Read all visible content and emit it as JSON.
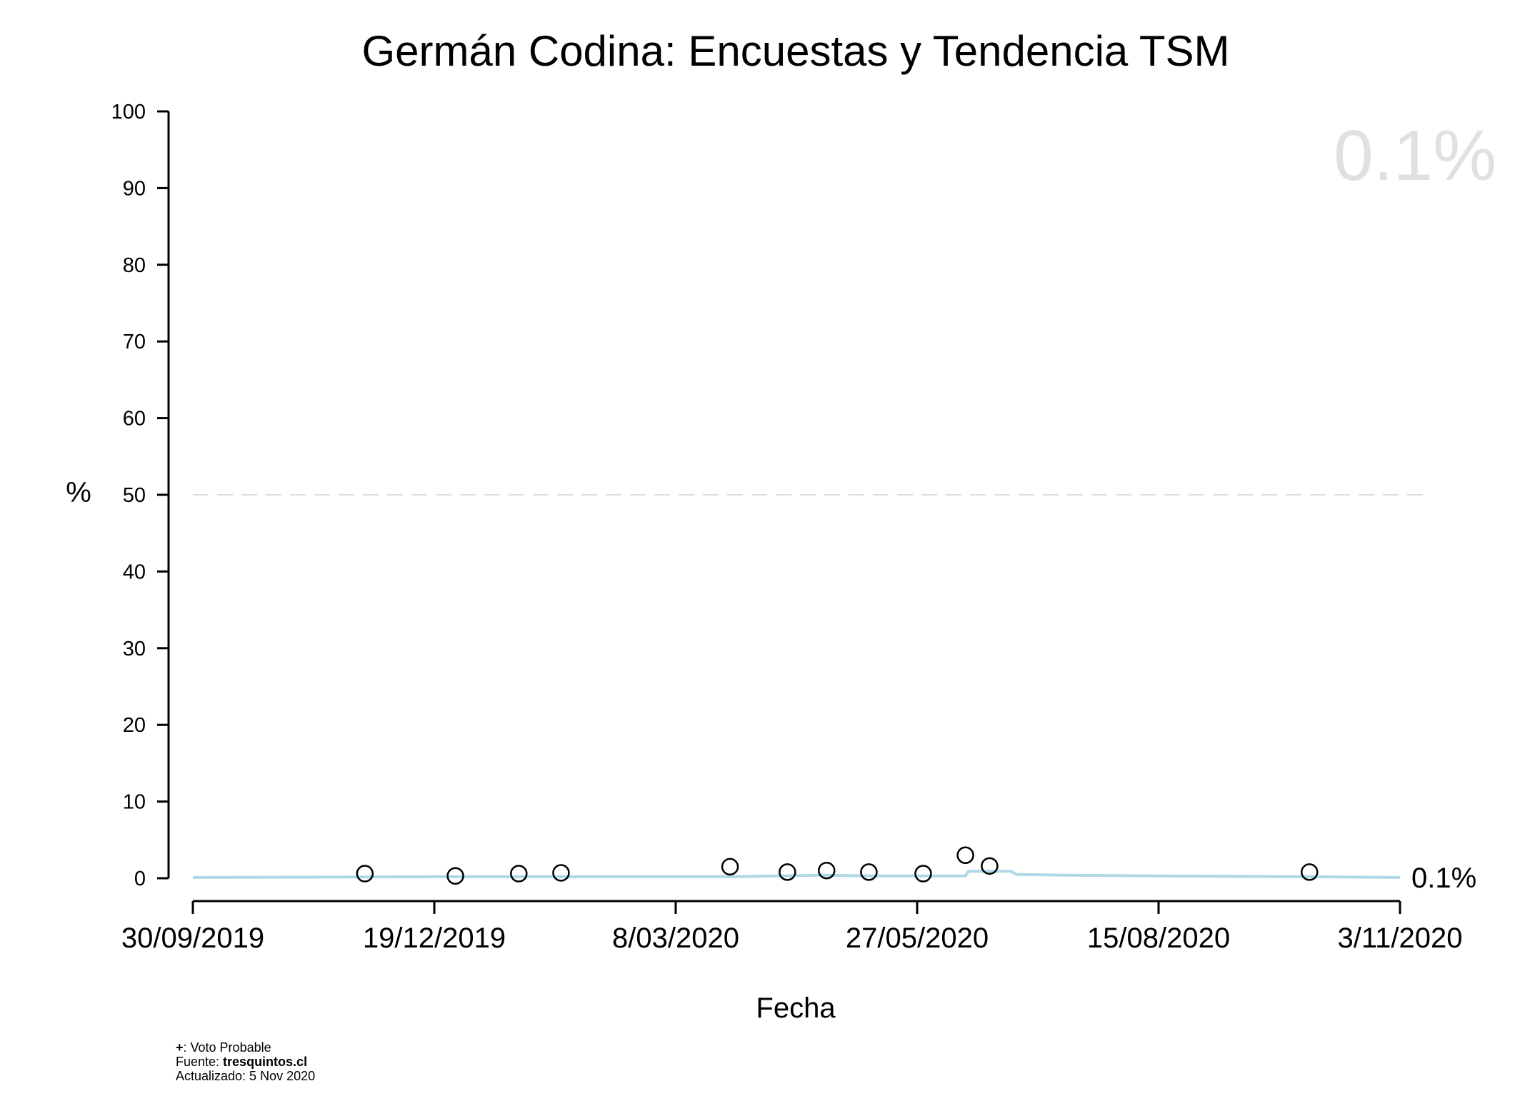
{
  "chart_data": {
    "type": "scatter",
    "title": "Germán Codina: Encuestas y Tendencia TSM",
    "xlabel": "Fecha",
    "ylabel": "%",
    "xlim": [
      "2019-09-30",
      "2020-11-03"
    ],
    "ylim": [
      0,
      100
    ],
    "x_ticks": [
      "30/09/2019",
      "19/12/2019",
      "8/03/2020",
      "27/05/2020",
      "15/08/2020",
      "3/11/2020"
    ],
    "y_ticks": [
      "0",
      "10",
      "20",
      "30",
      "40",
      "50",
      "60",
      "70",
      "80",
      "90",
      "100"
    ],
    "reference_line": {
      "y": 50,
      "style": "dashed",
      "color": "#dddddd"
    },
    "series": [
      {
        "type": "scatter",
        "marker": "open-circle",
        "color": "#000000",
        "points": [
          {
            "x": "2019-11-26",
            "y": 0.6
          },
          {
            "x": "2019-12-26",
            "y": 0.3
          },
          {
            "x": "2020-01-16",
            "y": 0.6
          },
          {
            "x": "2020-01-30",
            "y": 0.7
          },
          {
            "x": "2020-03-26",
            "y": 1.5
          },
          {
            "x": "2020-04-14",
            "y": 0.8
          },
          {
            "x": "2020-04-27",
            "y": 1.0
          },
          {
            "x": "2020-05-11",
            "y": 0.8
          },
          {
            "x": "2020-05-29",
            "y": 0.6
          },
          {
            "x": "2020-06-12",
            "y": 3.0
          },
          {
            "x": "2020-06-20",
            "y": 1.6
          },
          {
            "x": "2020-10-04",
            "y": 0.8
          }
        ]
      },
      {
        "type": "line",
        "color": "#add8e6",
        "points": [
          {
            "x": "2019-09-30",
            "y": 0.1
          },
          {
            "x": "2019-12-19",
            "y": 0.2
          },
          {
            "x": "2020-02-15",
            "y": 0.2
          },
          {
            "x": "2020-03-26",
            "y": 0.2
          },
          {
            "x": "2020-04-27",
            "y": 0.4
          },
          {
            "x": "2020-05-11",
            "y": 0.3
          },
          {
            "x": "2020-06-12",
            "y": 0.3
          },
          {
            "x": "2020-06-13",
            "y": 0.9
          },
          {
            "x": "2020-06-27",
            "y": 0.9
          },
          {
            "x": "2020-06-29",
            "y": 0.5
          },
          {
            "x": "2020-07-15",
            "y": 0.4
          },
          {
            "x": "2020-08-15",
            "y": 0.3
          },
          {
            "x": "2020-10-04",
            "y": 0.2
          },
          {
            "x": "2020-11-03",
            "y": 0.1
          }
        ]
      }
    ],
    "current_value": "0.1%",
    "end_label": "0.1%",
    "grid": false
  },
  "footer": {
    "legend_symbol": "+",
    "legend_text": ": Voto Probable",
    "source_prefix": "Fuente: ",
    "source_name": "tresquintos.cl",
    "updated": "Actualizado: 5 Nov 2020"
  }
}
